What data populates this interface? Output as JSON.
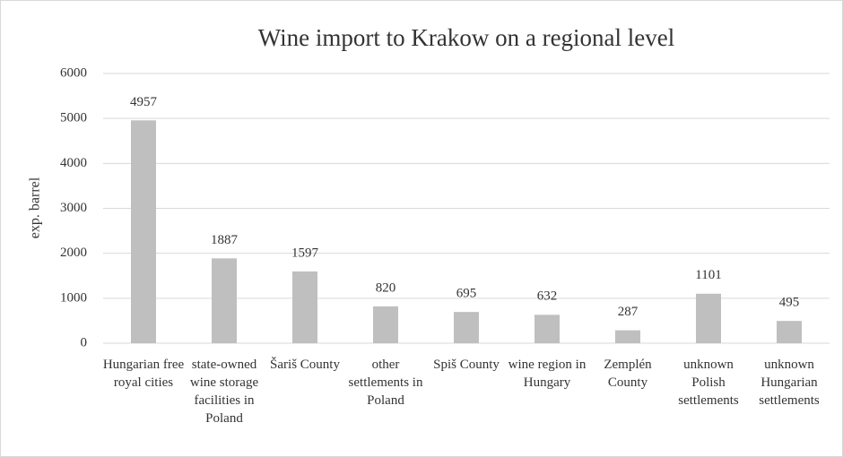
{
  "chart_data": {
    "type": "bar",
    "title": "Wine import to Krakow on a regional level",
    "ylabel": "exp. barrel",
    "categories": [
      "Hungarian free royal cities",
      "state-owned wine storage facilities in Poland",
      "Šariš County",
      "other settlements in Poland",
      "Spiš County",
      "wine region in Hungary",
      "Zemplén County",
      "unknown Polish settlements",
      "unknown Hungarian settlements"
    ],
    "values": [
      4957,
      1887,
      1597,
      820,
      695,
      632,
      287,
      1101,
      495
    ],
    "color": "#bfbfbf",
    "ylim": [
      0,
      6000
    ],
    "yticks": [
      0,
      1000,
      2000,
      3000,
      4000,
      5000,
      6000
    ],
    "grid": true
  }
}
